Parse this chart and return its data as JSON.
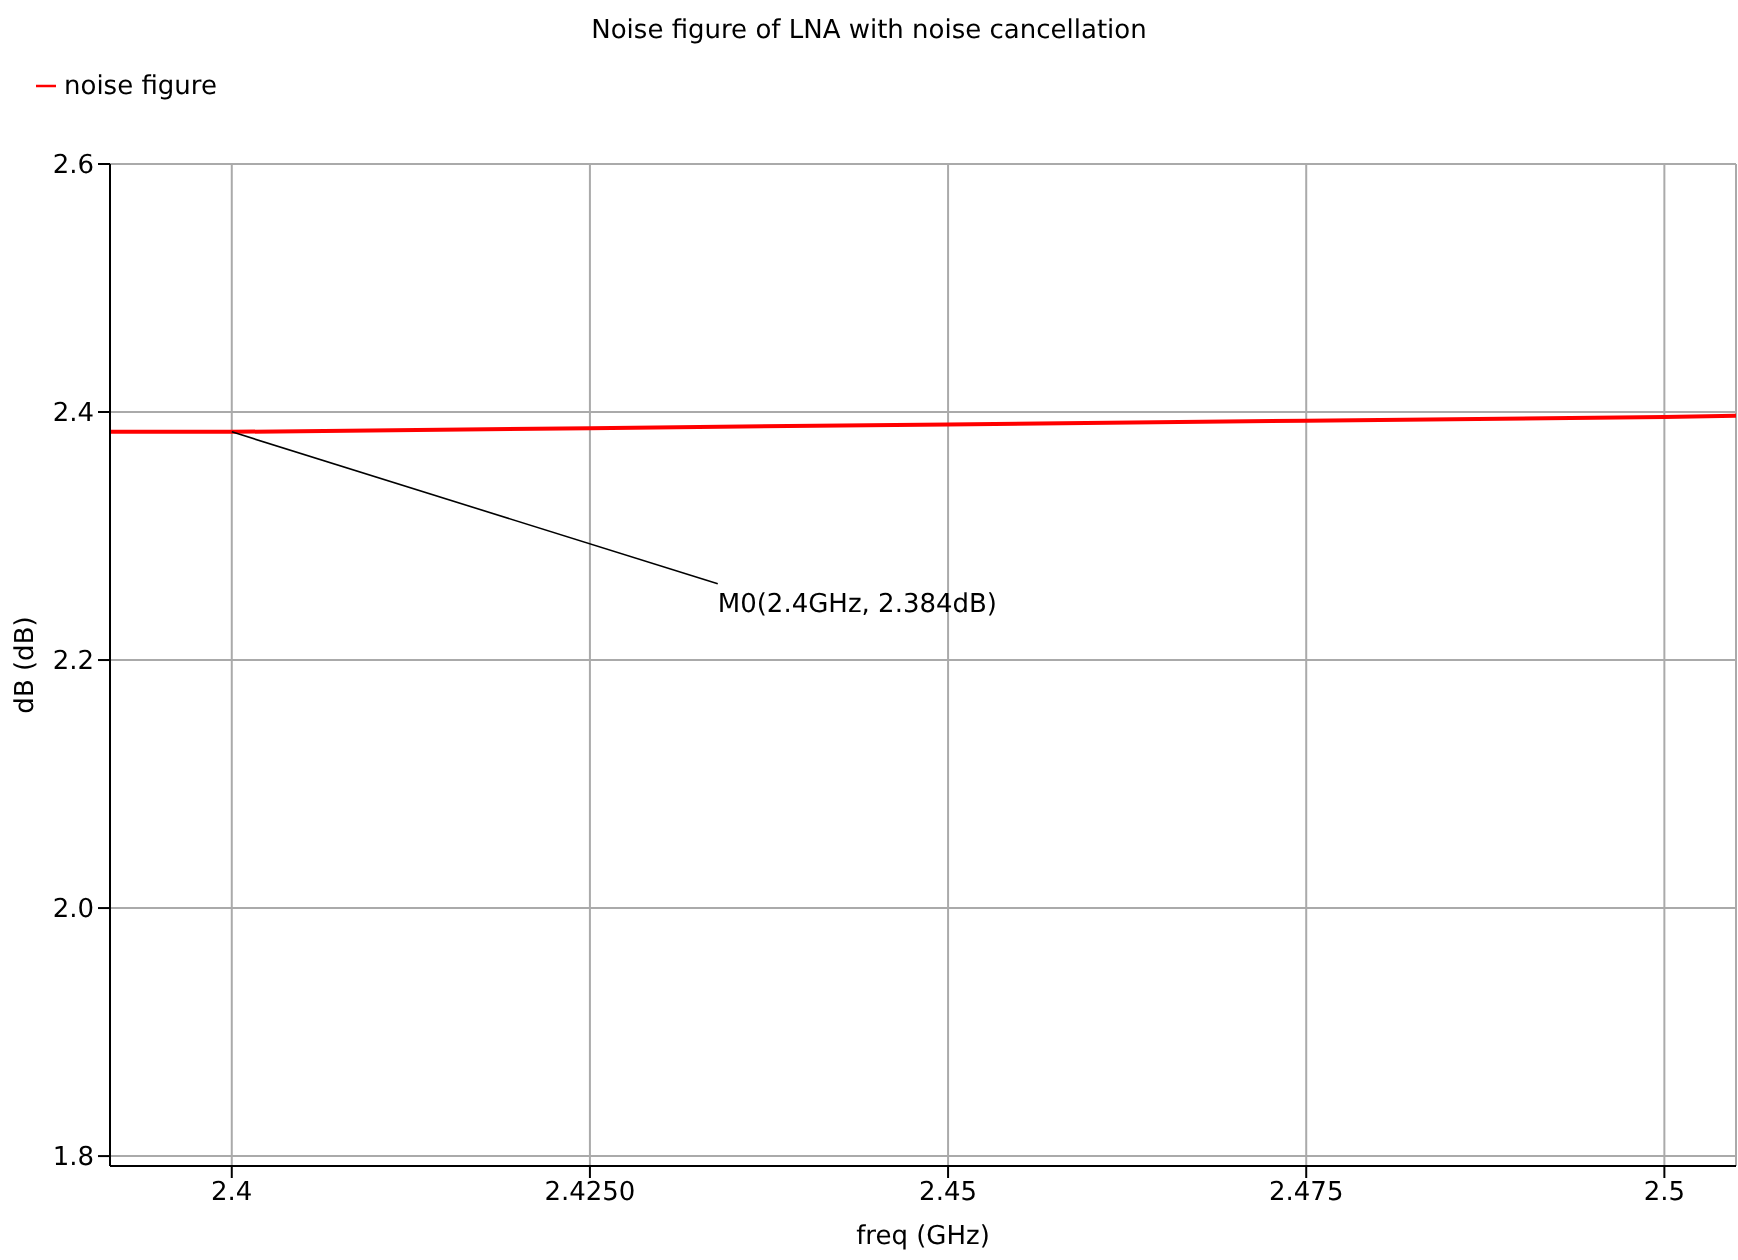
{
  "chart_data": {
    "type": "line",
    "title": "Noise figure of LNA with noise cancellation",
    "xlabel": "freq (GHz)",
    "ylabel": "dB (dB)",
    "x": [
      2.3915,
      2.4,
      2.425,
      2.45,
      2.475,
      2.5,
      2.505
    ],
    "series": [
      {
        "name": "noise figure",
        "color": "#ff0000",
        "values": [
          2.384,
          2.384,
          2.387,
          2.39,
          2.393,
          2.396,
          2.397
        ]
      }
    ],
    "xlim": [
      2.3915,
      2.505
    ],
    "xticks": [
      2.4,
      {
        "value": 2.425,
        "label": "2.4250"
      },
      2.45,
      2.475,
      2.5
    ],
    "ylim": [
      1.792,
      2.6
    ],
    "yticks": [
      {
        "value": 1.8,
        "label": "1.8"
      },
      {
        "value": 2.0,
        "label": "2.0"
      },
      2.2,
      2.4,
      2.6
    ],
    "annotations": [
      {
        "text": "M0(2.4GHz, 2.384dB)",
        "x": 2.4,
        "y": 2.384
      }
    ],
    "grid": true,
    "legend": "top left",
    "marker": "none",
    "line_style": "solid"
  }
}
